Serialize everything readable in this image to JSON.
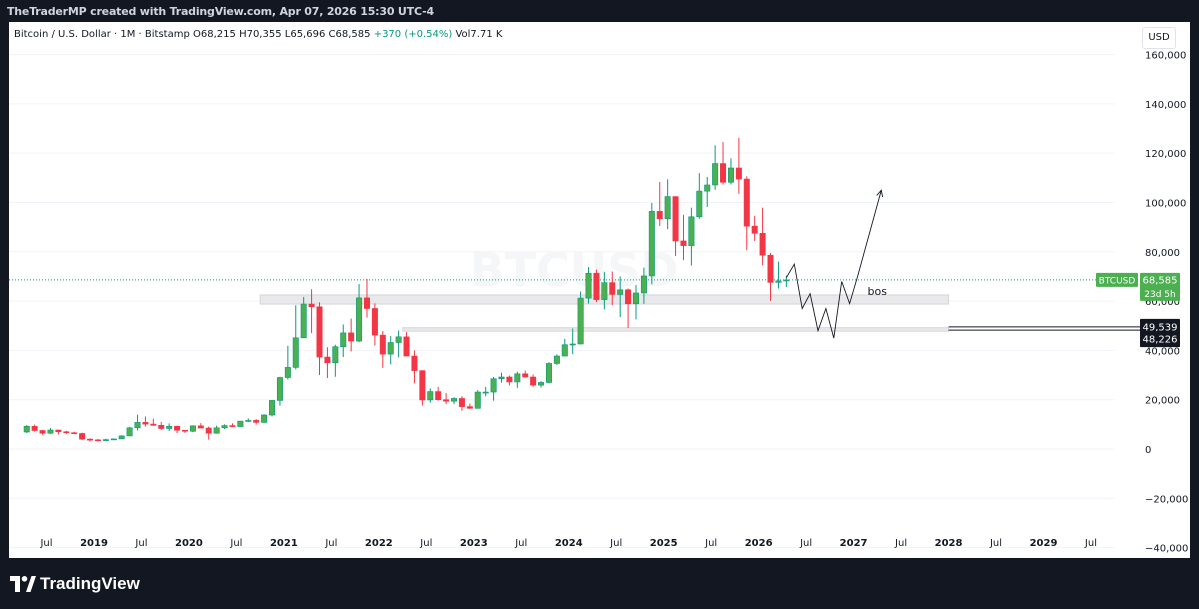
{
  "header": {
    "attribution": "TheTraderMP created with TradingView.com, Apr 07, 2026 15:30 UTC-4"
  },
  "legend": {
    "symbol": "Bitcoin / U.S. Dollar · 1M · Bitstamp",
    "open": "O68,215",
    "high": "H70,355",
    "low": "L65,696",
    "close": "C68,585",
    "change": "+370 (+0.54%)",
    "volume": "Vol7.71 K"
  },
  "currency_button": "USD",
  "watermark": "BTCUSD",
  "brand": "TradingView",
  "price_labels": {
    "symbol": "BTCUSD",
    "last": "68,585",
    "countdown": "23d 5h",
    "level_upper": "49,539",
    "level_lower": "48,226"
  },
  "annotation": "bos",
  "colors": {
    "up": "#089981",
    "up_fill": "#4caf50",
    "down": "#f23645",
    "bg": "#ffffff",
    "dark": "#131722",
    "grid": "#f0f3fa"
  },
  "chart_data": {
    "type": "candlestick",
    "symbol": "BTCUSD",
    "interval": "1M",
    "y_ticks": [
      160000,
      140000,
      120000,
      100000,
      80000,
      60000,
      40000,
      20000,
      0,
      -20000,
      -40000
    ],
    "y_tick_labels": [
      "160,000",
      "140,000",
      "120,000",
      "100,000",
      "80,000",
      "60,000",
      "40,000",
      "20,000",
      "0",
      "−20,000",
      "−40,000"
    ],
    "ylim": [
      -43000,
      172000
    ],
    "x_ticks": [
      {
        "label": "Jul",
        "date": "2018-07"
      },
      {
        "label": "2019",
        "date": "2019-01"
      },
      {
        "label": "Jul",
        "date": "2019-07"
      },
      {
        "label": "2020",
        "date": "2020-01"
      },
      {
        "label": "Jul",
        "date": "2020-07"
      },
      {
        "label": "2021",
        "date": "2021-01"
      },
      {
        "label": "Jul",
        "date": "2021-07"
      },
      {
        "label": "2022",
        "date": "2022-01"
      },
      {
        "label": "Jul",
        "date": "2022-07"
      },
      {
        "label": "2023",
        "date": "2023-01"
      },
      {
        "label": "Jul",
        "date": "2023-07"
      },
      {
        "label": "2024",
        "date": "2024-01"
      },
      {
        "label": "Jul",
        "date": "2024-07"
      },
      {
        "label": "2025",
        "date": "2025-01"
      },
      {
        "label": "Jul",
        "date": "2025-07"
      },
      {
        "label": "2026",
        "date": "2026-01"
      },
      {
        "label": "Jul",
        "date": "2026-07"
      },
      {
        "label": "2027",
        "date": "2027-01"
      },
      {
        "label": "Jul",
        "date": "2027-07"
      },
      {
        "label": "2028",
        "date": "2028-01"
      },
      {
        "label": "Jul",
        "date": "2028-07"
      },
      {
        "label": "2029",
        "date": "2029-01"
      },
      {
        "label": "Jul",
        "date": "2029-07"
      }
    ],
    "candles": [
      {
        "date": "2018-04",
        "o": 6900,
        "h": 9700,
        "l": 6500,
        "c": 9200
      },
      {
        "date": "2018-05",
        "o": 9200,
        "h": 9900,
        "l": 7100,
        "c": 7500
      },
      {
        "date": "2018-06",
        "o": 7500,
        "h": 7800,
        "l": 5800,
        "c": 6400
      },
      {
        "date": "2018-07",
        "o": 6400,
        "h": 8500,
        "l": 6100,
        "c": 7700
      },
      {
        "date": "2018-08",
        "o": 7700,
        "h": 7800,
        "l": 5900,
        "c": 7000
      },
      {
        "date": "2018-09",
        "o": 7000,
        "h": 7400,
        "l": 6100,
        "c": 6600
      },
      {
        "date": "2018-10",
        "o": 6600,
        "h": 7000,
        "l": 6200,
        "c": 6300
      },
      {
        "date": "2018-11",
        "o": 6300,
        "h": 6600,
        "l": 3600,
        "c": 4000
      },
      {
        "date": "2018-12",
        "o": 4000,
        "h": 4300,
        "l": 3100,
        "c": 3700
      },
      {
        "date": "2019-01",
        "o": 3700,
        "h": 4100,
        "l": 3400,
        "c": 3400
      },
      {
        "date": "2019-02",
        "o": 3400,
        "h": 4200,
        "l": 3300,
        "c": 3800
      },
      {
        "date": "2019-03",
        "o": 3800,
        "h": 4100,
        "l": 3700,
        "c": 4100
      },
      {
        "date": "2019-04",
        "o": 4100,
        "h": 5600,
        "l": 4100,
        "c": 5300
      },
      {
        "date": "2019-05",
        "o": 5300,
        "h": 9000,
        "l": 5300,
        "c": 8600
      },
      {
        "date": "2019-06",
        "o": 8600,
        "h": 13900,
        "l": 7500,
        "c": 10800
      },
      {
        "date": "2019-07",
        "o": 10800,
        "h": 13200,
        "l": 9100,
        "c": 10100
      },
      {
        "date": "2019-08",
        "o": 10100,
        "h": 12300,
        "l": 9400,
        "c": 9600
      },
      {
        "date": "2019-09",
        "o": 9600,
        "h": 10900,
        "l": 7700,
        "c": 8300
      },
      {
        "date": "2019-10",
        "o": 8300,
        "h": 10400,
        "l": 7300,
        "c": 9200
      },
      {
        "date": "2019-11",
        "o": 9200,
        "h": 9500,
        "l": 6500,
        "c": 7600
      },
      {
        "date": "2019-12",
        "o": 7600,
        "h": 7700,
        "l": 6500,
        "c": 7200
      },
      {
        "date": "2020-01",
        "o": 7200,
        "h": 9600,
        "l": 6900,
        "c": 9400
      },
      {
        "date": "2020-02",
        "o": 9400,
        "h": 10500,
        "l": 8500,
        "c": 8500
      },
      {
        "date": "2020-03",
        "o": 8500,
        "h": 9100,
        "l": 3800,
        "c": 6400
      },
      {
        "date": "2020-04",
        "o": 6400,
        "h": 9500,
        "l": 6200,
        "c": 8600
      },
      {
        "date": "2020-05",
        "o": 8600,
        "h": 10000,
        "l": 8100,
        "c": 9500
      },
      {
        "date": "2020-06",
        "o": 9500,
        "h": 10400,
        "l": 8900,
        "c": 9100
      },
      {
        "date": "2020-07",
        "o": 9100,
        "h": 11400,
        "l": 9000,
        "c": 11300
      },
      {
        "date": "2020-08",
        "o": 11300,
        "h": 12400,
        "l": 11000,
        "c": 11600
      },
      {
        "date": "2020-09",
        "o": 11600,
        "h": 12100,
        "l": 9900,
        "c": 10800
      },
      {
        "date": "2020-10",
        "o": 10800,
        "h": 14100,
        "l": 10500,
        "c": 13800
      },
      {
        "date": "2020-11",
        "o": 13800,
        "h": 19900,
        "l": 13200,
        "c": 19700
      },
      {
        "date": "2020-12",
        "o": 19700,
        "h": 29300,
        "l": 17600,
        "c": 29000
      },
      {
        "date": "2021-01",
        "o": 29000,
        "h": 41900,
        "l": 28200,
        "c": 33100
      },
      {
        "date": "2021-02",
        "o": 33100,
        "h": 58300,
        "l": 32300,
        "c": 45100
      },
      {
        "date": "2021-03",
        "o": 45100,
        "h": 61700,
        "l": 45000,
        "c": 58800
      },
      {
        "date": "2021-04",
        "o": 58800,
        "h": 64800,
        "l": 47000,
        "c": 57700
      },
      {
        "date": "2021-05",
        "o": 57700,
        "h": 59500,
        "l": 30000,
        "c": 37300
      },
      {
        "date": "2021-06",
        "o": 37300,
        "h": 41300,
        "l": 28800,
        "c": 35000
      },
      {
        "date": "2021-07",
        "o": 35000,
        "h": 42300,
        "l": 29300,
        "c": 41500
      },
      {
        "date": "2021-08",
        "o": 41500,
        "h": 50500,
        "l": 37300,
        "c": 47100
      },
      {
        "date": "2021-09",
        "o": 47100,
        "h": 52900,
        "l": 39600,
        "c": 43800
      },
      {
        "date": "2021-10",
        "o": 43800,
        "h": 66900,
        "l": 43300,
        "c": 61300
      },
      {
        "date": "2021-11",
        "o": 61300,
        "h": 69000,
        "l": 53300,
        "c": 57000
      },
      {
        "date": "2021-12",
        "o": 57000,
        "h": 59100,
        "l": 42000,
        "c": 46200
      },
      {
        "date": "2022-01",
        "o": 46200,
        "h": 47900,
        "l": 32900,
        "c": 38500
      },
      {
        "date": "2022-02",
        "o": 38500,
        "h": 45800,
        "l": 34300,
        "c": 43200
      },
      {
        "date": "2022-03",
        "o": 43200,
        "h": 48100,
        "l": 37200,
        "c": 45500
      },
      {
        "date": "2022-04",
        "o": 45500,
        "h": 47400,
        "l": 37700,
        "c": 37700
      },
      {
        "date": "2022-05",
        "o": 37700,
        "h": 40000,
        "l": 26600,
        "c": 31800
      },
      {
        "date": "2022-06",
        "o": 31800,
        "h": 31900,
        "l": 17600,
        "c": 19900
      },
      {
        "date": "2022-07",
        "o": 19900,
        "h": 24600,
        "l": 18800,
        "c": 23300
      },
      {
        "date": "2022-08",
        "o": 23300,
        "h": 25200,
        "l": 19600,
        "c": 20000
      },
      {
        "date": "2022-09",
        "o": 20000,
        "h": 22700,
        "l": 18200,
        "c": 19400
      },
      {
        "date": "2022-10",
        "o": 19400,
        "h": 21000,
        "l": 18200,
        "c": 20500
      },
      {
        "date": "2022-11",
        "o": 20500,
        "h": 21400,
        "l": 15500,
        "c": 17200
      },
      {
        "date": "2022-12",
        "o": 17200,
        "h": 18400,
        "l": 16300,
        "c": 16500
      },
      {
        "date": "2023-01",
        "o": 16500,
        "h": 23900,
        "l": 16500,
        "c": 23100
      },
      {
        "date": "2023-02",
        "o": 23100,
        "h": 25200,
        "l": 21400,
        "c": 23100
      },
      {
        "date": "2023-03",
        "o": 23100,
        "h": 29200,
        "l": 19600,
        "c": 28500
      },
      {
        "date": "2023-04",
        "o": 28500,
        "h": 31000,
        "l": 26900,
        "c": 29200
      },
      {
        "date": "2023-05",
        "o": 29200,
        "h": 29800,
        "l": 25800,
        "c": 27200
      },
      {
        "date": "2023-06",
        "o": 27200,
        "h": 31400,
        "l": 24800,
        "c": 30500
      },
      {
        "date": "2023-07",
        "o": 30500,
        "h": 31800,
        "l": 28900,
        "c": 29200
      },
      {
        "date": "2023-08",
        "o": 29200,
        "h": 30200,
        "l": 25300,
        "c": 25900
      },
      {
        "date": "2023-09",
        "o": 25900,
        "h": 27500,
        "l": 24900,
        "c": 27000
      },
      {
        "date": "2023-10",
        "o": 27000,
        "h": 35200,
        "l": 26600,
        "c": 34700
      },
      {
        "date": "2023-11",
        "o": 34700,
        "h": 38400,
        "l": 34100,
        "c": 37700
      },
      {
        "date": "2023-12",
        "o": 37700,
        "h": 44700,
        "l": 37600,
        "c": 42300
      },
      {
        "date": "2024-01",
        "o": 42300,
        "h": 48900,
        "l": 38500,
        "c": 42600
      },
      {
        "date": "2024-02",
        "o": 42600,
        "h": 63900,
        "l": 42500,
        "c": 61200
      },
      {
        "date": "2024-03",
        "o": 61200,
        "h": 73800,
        "l": 59000,
        "c": 71300
      },
      {
        "date": "2024-04",
        "o": 71300,
        "h": 72800,
        "l": 59600,
        "c": 60600
      },
      {
        "date": "2024-05",
        "o": 60600,
        "h": 71900,
        "l": 56600,
        "c": 67500
      },
      {
        "date": "2024-06",
        "o": 67500,
        "h": 72000,
        "l": 58400,
        "c": 62700
      },
      {
        "date": "2024-07",
        "o": 62700,
        "h": 70000,
        "l": 53500,
        "c": 64600
      },
      {
        "date": "2024-08",
        "o": 64600,
        "h": 65100,
        "l": 49100,
        "c": 58900
      },
      {
        "date": "2024-09",
        "o": 58900,
        "h": 66500,
        "l": 52600,
        "c": 63300
      },
      {
        "date": "2024-10",
        "o": 63300,
        "h": 73600,
        "l": 58900,
        "c": 70200
      },
      {
        "date": "2024-11",
        "o": 70200,
        "h": 99800,
        "l": 66800,
        "c": 96400
      },
      {
        "date": "2024-12",
        "o": 96400,
        "h": 108300,
        "l": 90500,
        "c": 93400
      },
      {
        "date": "2025-01",
        "o": 93400,
        "h": 109400,
        "l": 89200,
        "c": 102400
      },
      {
        "date": "2025-02",
        "o": 102400,
        "h": 102500,
        "l": 78300,
        "c": 84400
      },
      {
        "date": "2025-03",
        "o": 84400,
        "h": 95000,
        "l": 76600,
        "c": 82500
      },
      {
        "date": "2025-04",
        "o": 82500,
        "h": 97900,
        "l": 74400,
        "c": 94200
      },
      {
        "date": "2025-05",
        "o": 94200,
        "h": 111900,
        "l": 93400,
        "c": 104600
      },
      {
        "date": "2025-06",
        "o": 104600,
        "h": 110400,
        "l": 98200,
        "c": 107100
      },
      {
        "date": "2025-07",
        "o": 107100,
        "h": 123200,
        "l": 105100,
        "c": 115800
      },
      {
        "date": "2025-08",
        "o": 115800,
        "h": 124500,
        "l": 107300,
        "c": 108200
      },
      {
        "date": "2025-09",
        "o": 108200,
        "h": 117900,
        "l": 107300,
        "c": 114000
      },
      {
        "date": "2025-10",
        "o": 114000,
        "h": 126200,
        "l": 103500,
        "c": 109500
      },
      {
        "date": "2025-11",
        "o": 109500,
        "h": 110600,
        "l": 80600,
        "c": 90400
      },
      {
        "date": "2025-12",
        "o": 90400,
        "h": 94600,
        "l": 84400,
        "c": 87500
      },
      {
        "date": "2026-01",
        "o": 87500,
        "h": 97900,
        "l": 74500,
        "c": 78600
      },
      {
        "date": "2026-02",
        "o": 78600,
        "h": 79500,
        "l": 60100,
        "c": 67600
      },
      {
        "date": "2026-03",
        "o": 67600,
        "h": 76000,
        "l": 65100,
        "c": 68200
      },
      {
        "date": "2026-04",
        "o": 68215,
        "h": 70355,
        "l": 65696,
        "c": 68585
      }
    ],
    "last_price": 68585,
    "zones": [
      {
        "from": "2020-10",
        "to": "2028-01",
        "low": 58800,
        "high": 62500
      },
      {
        "from": "2022-04",
        "to": "2028-01",
        "low": 47800,
        "high": 49200
      }
    ],
    "levels": [
      {
        "value": 49539,
        "from": "2028-01"
      },
      {
        "value": 48226,
        "from": "2028-01"
      }
    ],
    "projection": [
      {
        "date": "2026-04",
        "v": 69500
      },
      {
        "date": "2026-05",
        "v": 75000
      },
      {
        "date": "2026-06",
        "v": 57000
      },
      {
        "date": "2026-07",
        "v": 63000
      },
      {
        "date": "2026-08",
        "v": 48000
      },
      {
        "date": "2026-09",
        "v": 57000
      },
      {
        "date": "2026-10",
        "v": 45000
      },
      {
        "date": "2026-11",
        "v": 68000
      },
      {
        "date": "2026-12",
        "v": 59000
      },
      {
        "date": "2027-01",
        "v": 70000
      },
      {
        "date": "2027-04",
        "v": 105000
      }
    ],
    "annotation_position": {
      "date": "2027-02",
      "v": 64000
    }
  }
}
